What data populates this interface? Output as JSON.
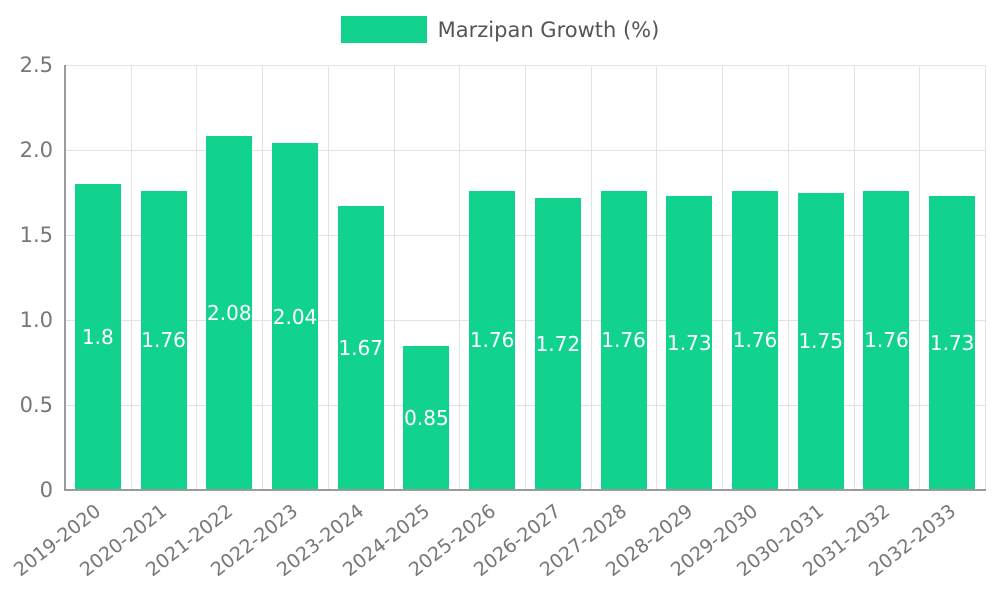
{
  "legend": {
    "label": "Marzipan Growth (%)"
  },
  "colors": {
    "bar": "#12d38e",
    "grid": "#e2e2e2",
    "axis": "#9b9b9b",
    "tick_text": "#777777",
    "value_label": "#ffffff",
    "legend_text": "#555555"
  },
  "chart_data": {
    "type": "bar",
    "title": "Marzipan Growth (%)",
    "xlabel": "",
    "ylabel": "",
    "legend_position": "top",
    "grid": true,
    "ylim": [
      0,
      2.5
    ],
    "yticks": [
      {
        "value": 0,
        "label": "0"
      },
      {
        "value": 0.5,
        "label": "0.5"
      },
      {
        "value": 1.0,
        "label": "1.0"
      },
      {
        "value": 1.5,
        "label": "1.5"
      },
      {
        "value": 2.0,
        "label": "2.0"
      },
      {
        "value": 2.5,
        "label": "2.5"
      }
    ],
    "categories": [
      "2019-2020",
      "2020-2021",
      "2021-2022",
      "2022-2023",
      "2023-2024",
      "2024-2025",
      "2025-2026",
      "2026-2027",
      "2027-2028",
      "2028-2029",
      "2029-2030",
      "2030-2031",
      "2031-2032",
      "2032-2033"
    ],
    "values": [
      1.8,
      1.76,
      2.08,
      2.04,
      1.67,
      0.85,
      1.76,
      1.72,
      1.76,
      1.73,
      1.76,
      1.75,
      1.76,
      1.73
    ],
    "value_labels": [
      "1.8",
      "1.76",
      "2.08",
      "2.04",
      "1.67",
      "0.85",
      "1.76",
      "1.72",
      "1.76",
      "1.73",
      "1.76",
      "1.75",
      "1.76",
      "1.73"
    ]
  }
}
